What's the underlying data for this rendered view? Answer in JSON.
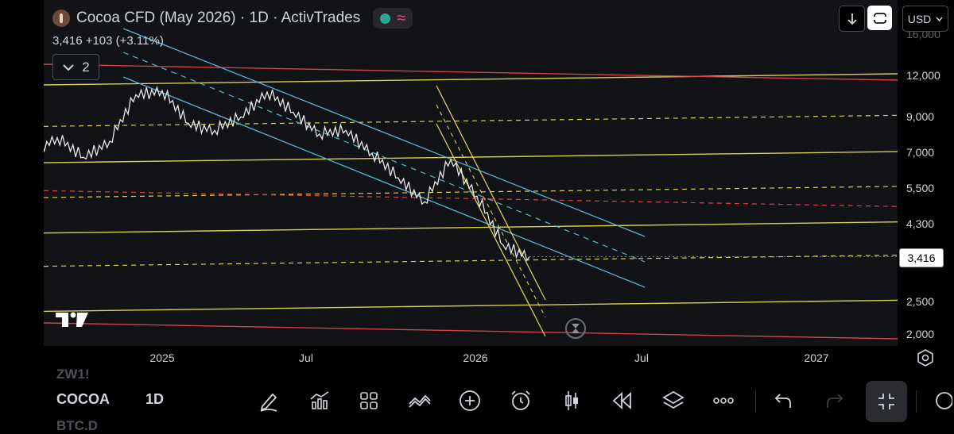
{
  "header": {
    "title": "Cocoa CFD (May 2026) · 1D · ActivTrades",
    "price_change": "3,416  +103 (+3.11%)",
    "indicator_count": "2",
    "currency": "USD"
  },
  "price_axis": {
    "ticks": [
      "12,000",
      "9,000",
      "7,000",
      "5,500",
      "4,300",
      "2,500",
      "2,000"
    ],
    "partial_tick": "16,000",
    "current_price_label": "3,416"
  },
  "time_axis": {
    "ticks": [
      "2025",
      "Jul",
      "2026",
      "Jul",
      "2027"
    ]
  },
  "chart_data": {
    "type": "line",
    "title": "Cocoa CFD (May 2026)",
    "xlabel": "",
    "ylabel": "",
    "y_scale": "log",
    "x_range": [
      "2024-07",
      "2027-05"
    ],
    "ylim": [
      1800,
      16500
    ],
    "series": [
      {
        "x": [
          "2024-08",
          "2024-09",
          "2024-10",
          "2024-11",
          "2024-12",
          "2025-01",
          "2025-02",
          "2025-03",
          "2025-04",
          "2025-05",
          "2025-06",
          "2025-07",
          "2025-08",
          "2025-09",
          "2025-10",
          "2025-11",
          "2025-12",
          "2026-01",
          "2026-02",
          "2026-03"
        ],
        "values": [
          7000,
          7800,
          6800,
          7600,
          10500,
          10800,
          8600,
          8200,
          9000,
          10700,
          9300,
          8000,
          8200,
          7000,
          5900,
          5000,
          6700,
          5200,
          3700,
          3416
        ]
      }
    ],
    "levels": {
      "solid_yellow": [
        12000,
        7000,
        4300,
        2500
      ],
      "dashed_yellow": [
        9000,
        5500,
        3416
      ],
      "red": [
        12000,
        2000
      ],
      "red_dashed": [
        5000
      ]
    }
  },
  "toolbar": {
    "symbol": "COCOA",
    "symbol_ghost_above": "ZW1!",
    "symbol_ghost_below": "BTC.D",
    "interval": "1D"
  },
  "colors": {
    "price_line": "#e8e8e8",
    "yellow_level": "#d9cf4e",
    "red_level": "#d9424a",
    "blue_channel": "#5ab3d4",
    "background": "#121317"
  },
  "icons": {
    "drawing": "pen-icon",
    "indicators": "chart-icon",
    "layouts": "grid-icon",
    "compare": "wave-icon",
    "add": "plus-circle-icon",
    "alert": "alarm-clock-icon",
    "bar_style": "candles-icon",
    "replay": "rewind-icon",
    "layers": "layers-icon",
    "more": "more-icon",
    "undo": "undo-icon",
    "redo": "redo-icon",
    "collapse": "collapse-icon"
  }
}
